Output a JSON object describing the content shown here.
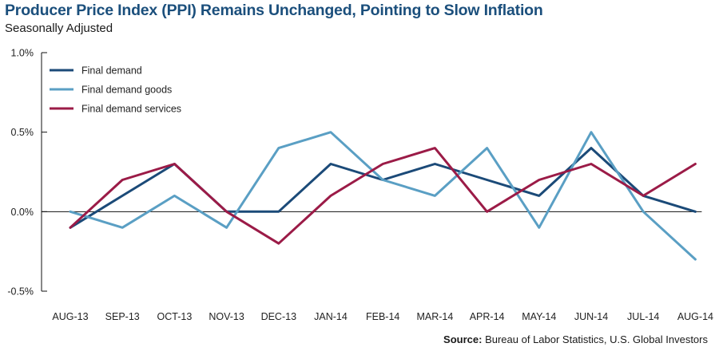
{
  "title": "Producer Price Index (PPI) Remains Unchanged, Pointing to Slow Inflation",
  "subtitle": "Seasonally Adjusted",
  "source": {
    "label": "Source:",
    "text": "Bureau of Labor Statistics, U.S. Global Investors"
  },
  "chart_data": {
    "type": "line",
    "categories": [
      "AUG-13",
      "SEP-13",
      "OCT-13",
      "NOV-13",
      "DEC-13",
      "JAN-14",
      "FEB-14",
      "MAR-14",
      "APR-14",
      "MAY-14",
      "JUN-14",
      "JUL-14",
      "AUG-14"
    ],
    "y_ticks": [
      "1.0%",
      "0.5%",
      "0.0%",
      "-0.5%"
    ],
    "y_tick_values": [
      1.0,
      0.5,
      0.0,
      -0.5
    ],
    "ylim": [
      -0.5,
      1.0
    ],
    "grid": false,
    "legend_position": "top-left",
    "series": [
      {
        "name": "Final demand",
        "color": "#1b4a78",
        "values": [
          -0.1,
          0.1,
          0.3,
          0.0,
          0.0,
          0.3,
          0.2,
          0.3,
          0.2,
          0.1,
          0.4,
          0.1,
          0.0
        ]
      },
      {
        "name": "Final demand goods",
        "color": "#5a9fc4",
        "values": [
          0.0,
          -0.1,
          0.1,
          -0.1,
          0.4,
          0.5,
          0.2,
          0.1,
          0.4,
          -0.1,
          0.5,
          0.0,
          -0.3
        ]
      },
      {
        "name": "Final demand services",
        "color": "#9b1b47",
        "values": [
          -0.1,
          0.2,
          0.3,
          0.0,
          -0.2,
          0.1,
          0.3,
          0.4,
          0.0,
          0.2,
          0.3,
          0.1,
          0.3
        ]
      }
    ]
  }
}
